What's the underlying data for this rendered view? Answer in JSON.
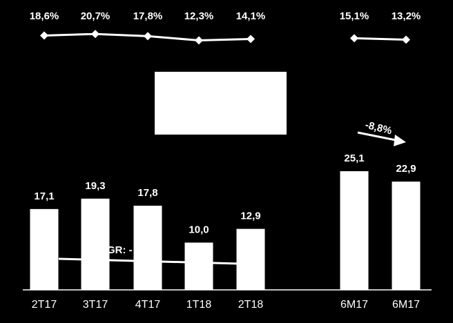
{
  "chart_data": {
    "type": "bar",
    "categories": [
      "2T17",
      "3T17",
      "4T17",
      "1T18",
      "2T18",
      "6M17",
      "6M17"
    ],
    "values": [
      17.1,
      19.3,
      17.8,
      10.0,
      12.9,
      25.1,
      22.9
    ],
    "value_labels": [
      "17,1",
      "19,3",
      "17,8",
      "10,0",
      "12,9",
      "25,1",
      "22,9"
    ],
    "color": "#ffffff",
    "line_series": {
      "type": "line",
      "color": "#ffffff",
      "values": [
        18.6,
        20.7,
        17.8,
        12.3,
        14.1,
        15.1,
        13.2
      ],
      "value_labels": [
        "18,6%",
        "20,7%",
        "17,8%",
        "12,3%",
        "14,1%",
        "15,1%",
        "13,2%"
      ]
    },
    "annotations": [
      "GR: -",
      "-8,8%"
    ]
  }
}
